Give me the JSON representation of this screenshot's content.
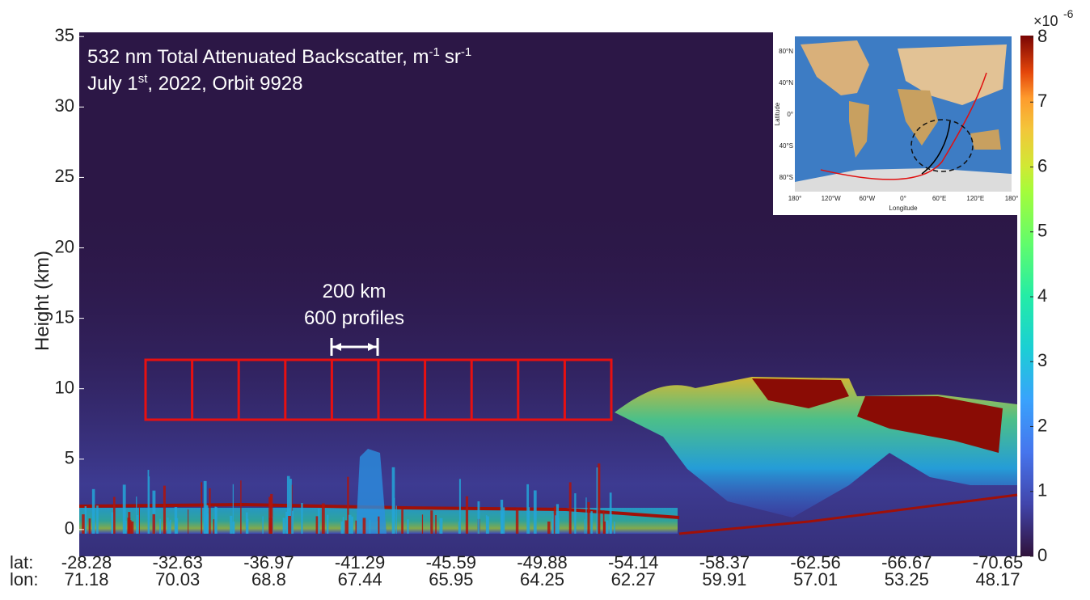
{
  "chart_data": {
    "type": "heatmap",
    "title": {
      "text": "532 nm Total Attenuated Backscatter, m",
      "sup1": "-1",
      "unit": "sr",
      "sup2": "-1"
    },
    "subtitle": {
      "text": "July 1",
      "sup": "st",
      "rest": ", 2022, Orbit 9928"
    },
    "ylabel": "Height (km)",
    "ylim": [
      -1.9,
      35.3
    ],
    "yticks": [
      0,
      5,
      10,
      15,
      20,
      25,
      30,
      35
    ],
    "x_label_rows": [
      {
        "name": "lat:",
        "values": [
          -28.28,
          -32.63,
          -36.97,
          -41.29,
          -45.59,
          -49.88,
          -54.14,
          -58.37,
          -62.56,
          -66.67,
          -70.65
        ]
      },
      {
        "name": "lon:",
        "values": [
          71.18,
          70.03,
          68.8,
          67.44,
          65.95,
          64.25,
          62.27,
          59.91,
          57.01,
          53.25,
          48.17
        ]
      }
    ],
    "annotations": [
      "200 km",
      "600 profiles"
    ],
    "colorbar": {
      "lim": [
        0,
        8
      ],
      "ticks": [
        0,
        1,
        2,
        3,
        4,
        5,
        6,
        7,
        8
      ],
      "multiplier_base": "×10",
      "multiplier_exp": "-6"
    },
    "inset": {
      "lat_ticks": [
        "80°N",
        "40°N",
        "0°",
        "40°S",
        "80°S"
      ],
      "lon_ticks": [
        "180°",
        "120°W",
        "60°W",
        "0°",
        "60°E",
        "120°E",
        "180°"
      ],
      "xlabel": "Longitude",
      "ylabel": "Latitude"
    }
  }
}
